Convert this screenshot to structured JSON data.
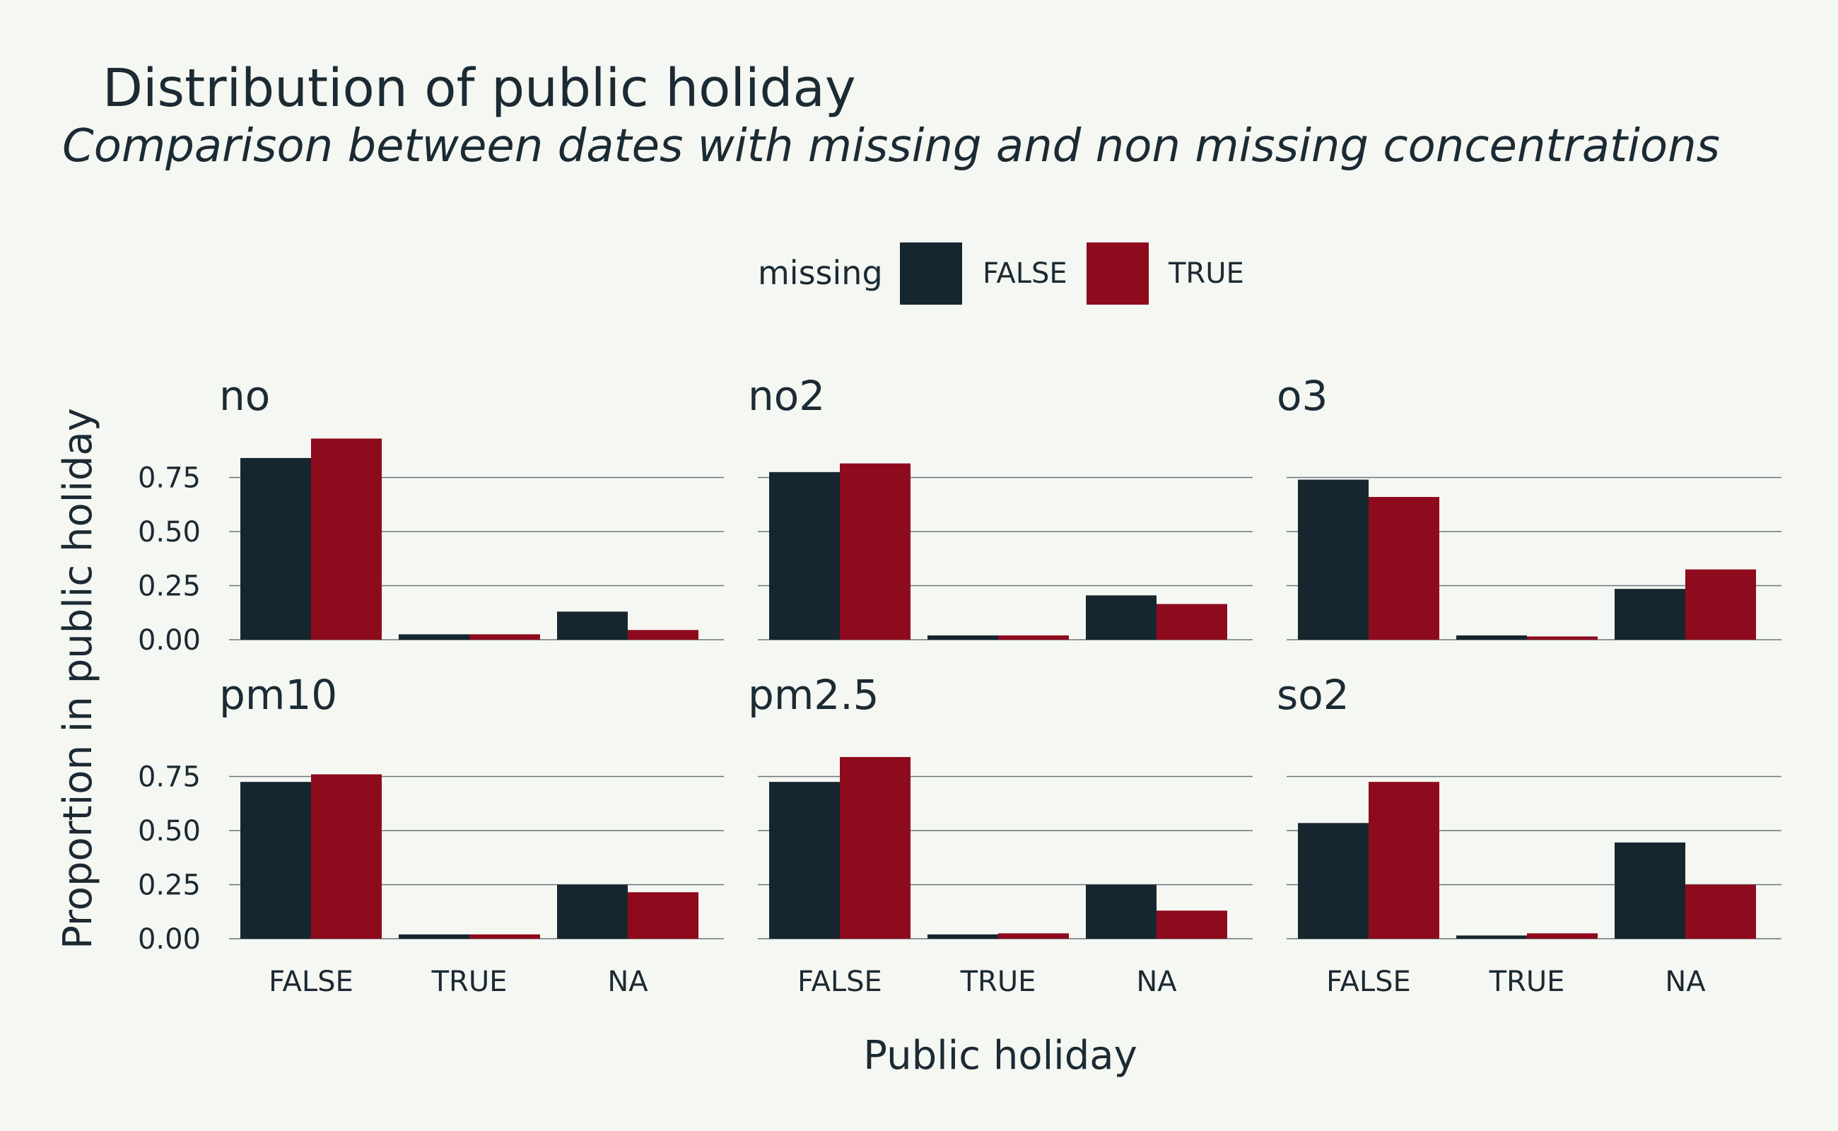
{
  "chart_data": {
    "type": "bar",
    "title": "Distribution of public holiday",
    "subtitle": "Comparison between dates with missing and non missing concentrations",
    "xlabel": "Public holiday",
    "ylabel": "Proportion in public holiday",
    "categories": [
      "FALSE",
      "TRUE",
      "NA"
    ],
    "ylim": [
      0,
      1
    ],
    "yticks": [
      0,
      0.25,
      0.5,
      0.75
    ],
    "ytick_labels": [
      "0.00",
      "0.25",
      "0.50",
      "0.75"
    ],
    "legend": {
      "title": "missing",
      "position": "top",
      "entries": [
        {
          "label": "FALSE",
          "color": "#16262f"
        },
        {
          "label": "TRUE",
          "color": "#8e0a1d"
        }
      ]
    },
    "grid": true,
    "facets": [
      {
        "name": "no",
        "series": [
          {
            "name": "FALSE",
            "values": [
              0.84,
              0.025,
              0.13
            ]
          },
          {
            "name": "TRUE",
            "values": [
              0.93,
              0.025,
              0.045
            ]
          }
        ]
      },
      {
        "name": "no2",
        "series": [
          {
            "name": "FALSE",
            "values": [
              0.775,
              0.02,
              0.205
            ]
          },
          {
            "name": "TRUE",
            "values": [
              0.815,
              0.02,
              0.165
            ]
          }
        ]
      },
      {
        "name": "o3",
        "series": [
          {
            "name": "FALSE",
            "values": [
              0.74,
              0.02,
              0.235
            ]
          },
          {
            "name": "TRUE",
            "values": [
              0.66,
              0.015,
              0.325
            ]
          }
        ]
      },
      {
        "name": "pm10",
        "series": [
          {
            "name": "FALSE",
            "values": [
              0.725,
              0.02,
              0.25
            ]
          },
          {
            "name": "TRUE",
            "values": [
              0.76,
              0.02,
              0.215
            ]
          }
        ]
      },
      {
        "name": "pm2.5",
        "series": [
          {
            "name": "FALSE",
            "values": [
              0.725,
              0.02,
              0.25
            ]
          },
          {
            "name": "TRUE",
            "values": [
              0.84,
              0.025,
              0.13
            ]
          }
        ]
      },
      {
        "name": "so2",
        "series": [
          {
            "name": "FALSE",
            "values": [
              0.535,
              0.015,
              0.445
            ]
          },
          {
            "name": "TRUE",
            "values": [
              0.725,
              0.025,
              0.25
            ]
          }
        ]
      }
    ]
  }
}
